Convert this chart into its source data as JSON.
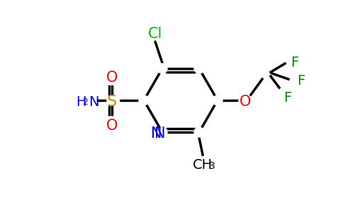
{
  "background_color": "#ffffff",
  "bond_color": "#000000",
  "bond_width": 2.5,
  "atom_colors": {
    "C": "#000000",
    "N": "#0000ff",
    "O": "#ff0000",
    "S": "#ffaa00",
    "Cl": "#00bb00",
    "F": "#008800",
    "H": "#0000ff"
  },
  "font_size_atoms": 14,
  "font_size_small": 11,
  "figsize": [
    4.84,
    3.0
  ]
}
